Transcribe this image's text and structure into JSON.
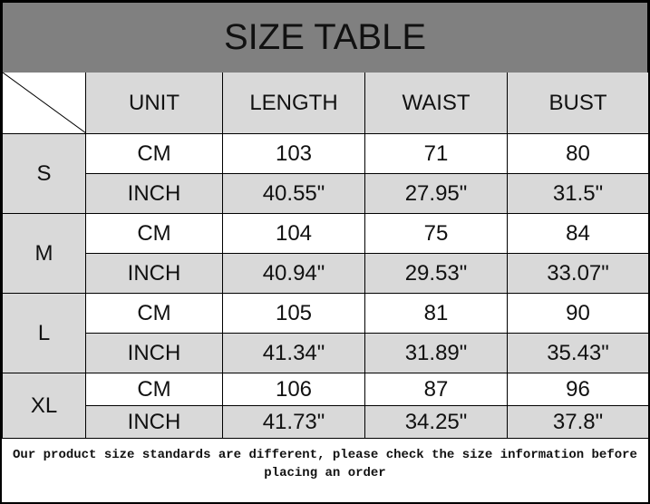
{
  "title": "SIZE TABLE",
  "headers": [
    "UNIT",
    "LENGTH",
    "WAIST",
    "BUST"
  ],
  "sizes": [
    {
      "size": "S",
      "rows": [
        [
          "CM",
          "103",
          "71",
          "80"
        ],
        [
          "INCH",
          "40.55\"",
          "27.95\"",
          "31.5\""
        ]
      ]
    },
    {
      "size": "M",
      "rows": [
        [
          "CM",
          "104",
          "75",
          "84"
        ],
        [
          "INCH",
          "40.94\"",
          "29.53\"",
          "33.07\""
        ]
      ]
    },
    {
      "size": "L",
      "rows": [
        [
          "CM",
          "105",
          "81",
          "90"
        ],
        [
          "INCH",
          "41.34\"",
          "31.89\"",
          "35.43\""
        ]
      ]
    },
    {
      "size": "XL",
      "rows": [
        [
          "CM",
          "106",
          "87",
          "96"
        ],
        [
          "INCH",
          "41.73\"",
          "34.25\"",
          "37.8\""
        ]
      ]
    }
  ],
  "footer": "Our product size standards are different, please check the size information before placing an order"
}
